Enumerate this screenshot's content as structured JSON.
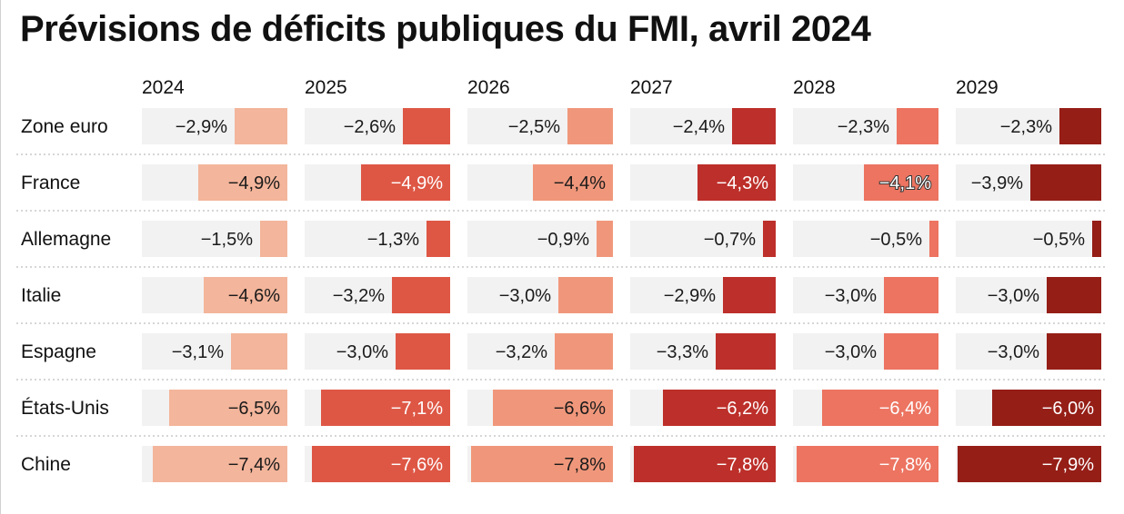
{
  "title": "Prévisions de déficits publiques du FMI, avril 2024",
  "chart_data": {
    "type": "table",
    "title": "Prévisions de déficits publiques du FMI, avril 2024",
    "columns": [
      "2024",
      "2025",
      "2026",
      "2027",
      "2028",
      "2029"
    ],
    "rows": [
      {
        "label": "Zone euro",
        "values": [
          -2.9,
          -2.6,
          -2.5,
          -2.4,
          -2.3,
          -2.3
        ],
        "labels": [
          "−2,9%",
          "−2,6%",
          "−2,5%",
          "−2,4%",
          "−2,3%",
          "−2,3%"
        ]
      },
      {
        "label": "France",
        "values": [
          -4.9,
          -4.9,
          -4.4,
          -4.3,
          -4.1,
          -3.9
        ],
        "labels": [
          "−4,9%",
          "−4,9%",
          "−4,4%",
          "−4,3%",
          "−4,1%",
          "−3,9%"
        ]
      },
      {
        "label": "Allemagne",
        "values": [
          -1.5,
          -1.3,
          -0.9,
          -0.7,
          -0.5,
          -0.5
        ],
        "labels": [
          "−1,5%",
          "−1,3%",
          "−0,9%",
          "−0,7%",
          "−0,5%",
          "−0,5%"
        ]
      },
      {
        "label": "Italie",
        "values": [
          -4.6,
          -3.2,
          -3.0,
          -2.9,
          -3.0,
          -3.0
        ],
        "labels": [
          "−4,6%",
          "−3,2%",
          "−3,0%",
          "−2,9%",
          "−3,0%",
          "−3,0%"
        ]
      },
      {
        "label": "Espagne",
        "values": [
          -3.1,
          -3.0,
          -3.2,
          -3.3,
          -3.0,
          -3.0
        ],
        "labels": [
          "−3,1%",
          "−3,0%",
          "−3,2%",
          "−3,3%",
          "−3,0%",
          "−3,0%"
        ]
      },
      {
        "label": "États-Unis",
        "values": [
          -6.5,
          -7.1,
          -6.6,
          -6.2,
          -6.4,
          -6.0
        ],
        "labels": [
          "−6,5%",
          "−7,1%",
          "−6,6%",
          "−6,2%",
          "−6,4%",
          "−6,0%"
        ]
      },
      {
        "label": "Chine",
        "values": [
          -7.4,
          -7.6,
          -7.8,
          -7.8,
          -7.8,
          -7.9
        ],
        "labels": [
          "−7,4%",
          "−7,6%",
          "−7,8%",
          "−7,8%",
          "−7,8%",
          "−7,9%"
        ]
      }
    ],
    "xlim": [
      0,
      8
    ],
    "column_colors": [
      "#f3b59b",
      "#de5745",
      "#f0977b",
      "#bd2f2a",
      "#ec7461",
      "#951e17"
    ],
    "background_color": "#f2f2f2",
    "row_separator": "dotted"
  }
}
